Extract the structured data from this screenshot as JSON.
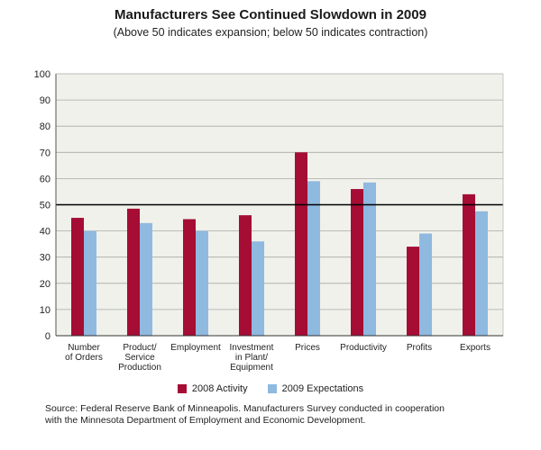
{
  "chart_data": {
    "type": "bar",
    "title": "Manufacturers See Continued Slowdown in 2009",
    "subtitle": "(Above 50 indicates expansion; below 50 indicates contraction)",
    "categories": [
      [
        "Number",
        "of Orders"
      ],
      [
        "Product/",
        "Service",
        "Production"
      ],
      [
        "Employment"
      ],
      [
        "Investment",
        "in Plant/",
        "Equipment"
      ],
      [
        "Prices"
      ],
      [
        "Productivity"
      ],
      [
        "Profits"
      ],
      [
        "Exports"
      ]
    ],
    "series": [
      {
        "name": "2008 Activity",
        "color": "#a50d35",
        "values": [
          45,
          48.5,
          44.5,
          46,
          70,
          56,
          34,
          54
        ]
      },
      {
        "name": "2009 Expectations",
        "color": "#8fb9df",
        "values": [
          40,
          43,
          40,
          36,
          59,
          58.5,
          39,
          47.5
        ]
      }
    ],
    "ylim": [
      0,
      100
    ],
    "yticks": [
      0,
      10,
      20,
      30,
      40,
      50,
      60,
      70,
      80,
      90,
      100
    ],
    "reference_line": 50,
    "grid": true,
    "legend_position": "bottom",
    "plot_background": "#f0f1eb",
    "source_lines": [
      "Source: Federal Reserve Bank of Minneapolis. Manufacturers Survey conducted in cooperation",
      "with the Minnesota Department of Employment and Economic Development."
    ]
  }
}
